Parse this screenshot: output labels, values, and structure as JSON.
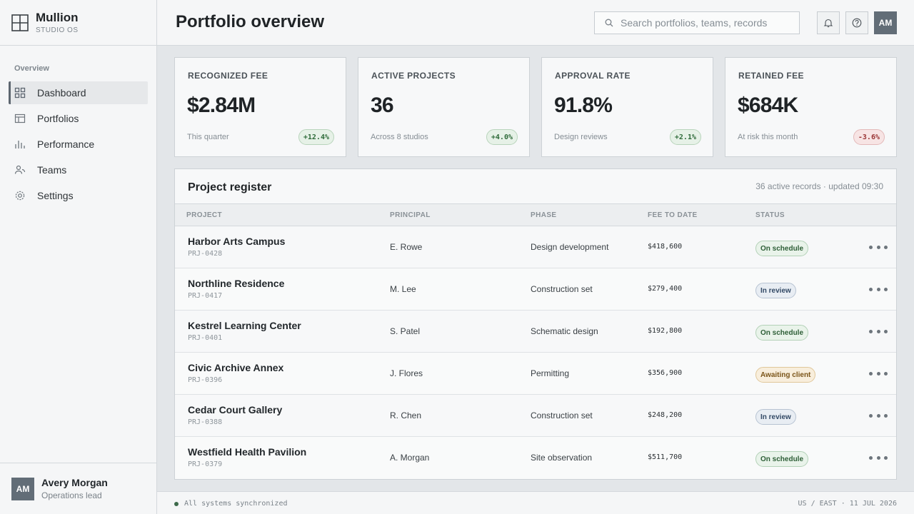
{
  "brand": {
    "name": "Mullion",
    "subtitle": "STUDIO OS"
  },
  "sidebar": {
    "section_label": "Overview",
    "items": [
      {
        "label": "Dashboard",
        "icon": "grid-icon",
        "active": true
      },
      {
        "label": "Portfolios",
        "icon": "layout-icon",
        "active": false
      },
      {
        "label": "Performance",
        "icon": "bar-chart-icon",
        "active": false
      },
      {
        "label": "Teams",
        "icon": "people-icon",
        "active": false
      },
      {
        "label": "Settings",
        "icon": "gear-icon",
        "active": false
      }
    ],
    "user": {
      "initials": "AM",
      "name": "Avery Morgan",
      "role": "Operations lead"
    }
  },
  "header": {
    "title": "Portfolio overview",
    "search_placeholder": "Search portfolios, teams, records",
    "avatar_initials": "AM"
  },
  "kpis": [
    {
      "label": "RECOGNIZED FEE",
      "value": "$2.84M",
      "sub": "This quarter",
      "delta": "+12.4%",
      "trend": "up"
    },
    {
      "label": "ACTIVE PROJECTS",
      "value": "36",
      "sub": "Across 8 studios",
      "delta": "+4.0%",
      "trend": "up"
    },
    {
      "label": "APPROVAL RATE",
      "value": "91.8%",
      "sub": "Design reviews",
      "delta": "+2.1%",
      "trend": "up"
    },
    {
      "label": "RETAINED FEE",
      "value": "$684K",
      "sub": "At risk this month",
      "delta": "-3.6%",
      "trend": "down"
    }
  ],
  "register": {
    "title": "Project register",
    "meta": "36 active records · updated 09:30",
    "columns": [
      "PROJECT",
      "PRINCIPAL",
      "PHASE",
      "FEE TO DATE",
      "STATUS"
    ],
    "rows": [
      {
        "name": "Harbor Arts Campus",
        "id": "PRJ-0428",
        "principal": "E. Rowe",
        "phase": "Design development",
        "fee": "$418,600",
        "status": "On schedule",
        "tone": "green"
      },
      {
        "name": "Northline Residence",
        "id": "PRJ-0417",
        "principal": "M. Lee",
        "phase": "Construction set",
        "fee": "$279,400",
        "status": "In review",
        "tone": "blue"
      },
      {
        "name": "Kestrel Learning Center",
        "id": "PRJ-0401",
        "principal": "S. Patel",
        "phase": "Schematic design",
        "fee": "$192,800",
        "status": "On schedule",
        "tone": "green"
      },
      {
        "name": "Civic Archive Annex",
        "id": "PRJ-0396",
        "principal": "J. Flores",
        "phase": "Permitting",
        "fee": "$356,900",
        "status": "Awaiting client",
        "tone": "amber"
      },
      {
        "name": "Cedar Court Gallery",
        "id": "PRJ-0388",
        "principal": "R. Chen",
        "phase": "Construction set",
        "fee": "$248,200",
        "status": "In review",
        "tone": "blue"
      },
      {
        "name": "Westfield Health Pavilion",
        "id": "PRJ-0379",
        "principal": "A. Morgan",
        "phase": "Site observation",
        "fee": "$511,700",
        "status": "On schedule",
        "tone": "green"
      }
    ]
  },
  "footer": {
    "sync_text": "All systems synchronized",
    "region": "US / EAST · 11 JUL 2026"
  },
  "colors": {
    "accent": "#626d77",
    "positive": "#2f6b3a",
    "negative": "#9a3535",
    "sync": "#3d6a4b"
  }
}
